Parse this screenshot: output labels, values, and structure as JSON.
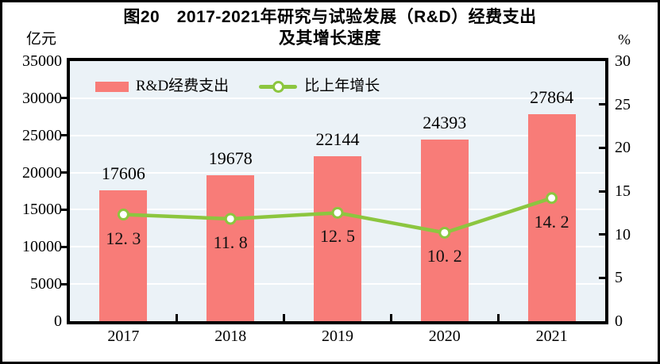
{
  "title": {
    "line1": "图20　2017-2021年研究与试验发展（R&D）经费支出",
    "line2": "及其增长速度"
  },
  "axes": {
    "left_unit": "亿元",
    "right_unit": "%"
  },
  "legend": {
    "bar_label": "R&D经费支出",
    "line_label": "比上年增长"
  },
  "colors": {
    "bar": "#F87C78",
    "line": "#8CC63F",
    "plot_bg": "#EBF2F7",
    "grid": "#FFFFFF",
    "text": "#000000",
    "frame": "#000000"
  },
  "chart_data": {
    "type": "bar+line",
    "title": "图20 2017-2021年研究与试验发展（R&D）经费支出及其增长速度",
    "categories": [
      "2017",
      "2018",
      "2019",
      "2020",
      "2021"
    ],
    "series": [
      {
        "name": "R&D经费支出",
        "type": "bar",
        "axis": "left",
        "values": [
          17606,
          19678,
          22144,
          24393,
          27864
        ],
        "labels": [
          "17606",
          "19678",
          "22144",
          "24393",
          "27864"
        ]
      },
      {
        "name": "比上年增长",
        "type": "line",
        "axis": "right",
        "values": [
          12.3,
          11.8,
          12.5,
          10.2,
          14.2
        ],
        "labels": [
          "12. 3",
          "11. 8",
          "12. 5",
          "10. 2",
          "14. 2"
        ]
      }
    ],
    "left_axis": {
      "label": "亿元",
      "min": 0,
      "max": 35000,
      "step": 5000,
      "ticks": [
        "0",
        "5000",
        "10000",
        "15000",
        "20000",
        "25000",
        "30000",
        "35000"
      ]
    },
    "right_axis": {
      "label": "%",
      "min": 0,
      "max": 30,
      "step": 5,
      "ticks": [
        "0",
        "5",
        "10",
        "15",
        "20",
        "25",
        "30"
      ]
    },
    "grid": true,
    "legend_position": "top-left-inside"
  }
}
